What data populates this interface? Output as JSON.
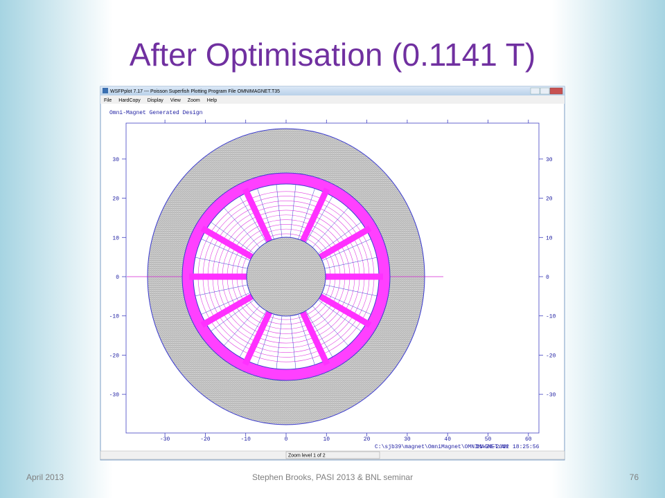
{
  "slide": {
    "title": "After Optimisation (0.1141 T)",
    "footer": {
      "date": "April 2013",
      "center": "Stephen Brooks, PASI 2013 & BNL seminar",
      "page": "76"
    }
  },
  "window": {
    "title": "WSFPplot 7.17 --- Poisson Superfish Plotting Program   File OMNIMAGNET.T35",
    "menu": [
      "File",
      "HardCopy",
      "Display",
      "View",
      "Zoom",
      "Help"
    ],
    "status": "Zoom level 1 of 2"
  },
  "plot": {
    "title": "Omni-Magnet Generated Design",
    "xticks": [
      -30,
      -20,
      -10,
      0,
      10,
      20,
      30,
      40,
      50,
      60
    ],
    "yticks": [
      30,
      20,
      10,
      0,
      -10,
      -20,
      -30
    ],
    "file_path": "C:\\sjb39\\magnet\\OmniMagnet\\OMNIMAGNET.AM",
    "date": "11-28-2012",
    "time": "18:25:56"
  }
}
